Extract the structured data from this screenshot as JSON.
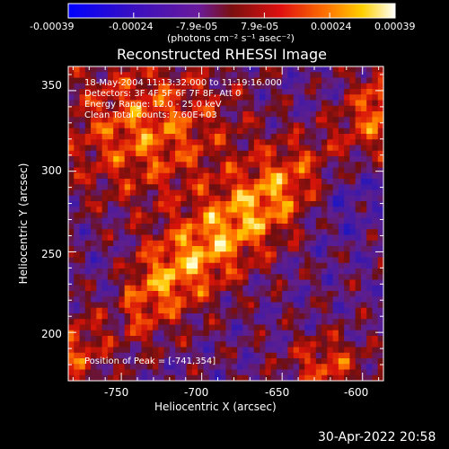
{
  "colorbar": {
    "tick_labels": [
      "-0.00039",
      "-0.00024",
      "-7.9e-05",
      "7.9e-05",
      "0.00024",
      "0.00039"
    ],
    "unit_label": "(photons cm⁻² s⁻¹ asec⁻²)",
    "range": [
      -0.00039,
      0.00039
    ]
  },
  "plot": {
    "title": "Reconstructed RHESSI Image",
    "xlabel": "Heliocentric X (arcsec)",
    "ylabel": "Heliocentric Y (arcsec)",
    "x_ticks": [
      "-750",
      "-700",
      "-650",
      "-600"
    ],
    "y_ticks": [
      "200",
      "250",
      "300",
      "350"
    ],
    "xlim": [
      -783,
      -587
    ],
    "ylim": [
      170,
      365
    ],
    "annotations": [
      "18-May-2004 11:13:32.000 to 11:19:16.000",
      "Detectors: 3F 4F 5F 6F 7F 8F, Att 0",
      "Energy Range: 12.0 - 25.0 keV",
      "Clean     Total counts: 7.60E+03"
    ],
    "peak_label": "Position of Peak = [-741,354]"
  },
  "timestamp": "30-Apr-2022 20:58"
}
